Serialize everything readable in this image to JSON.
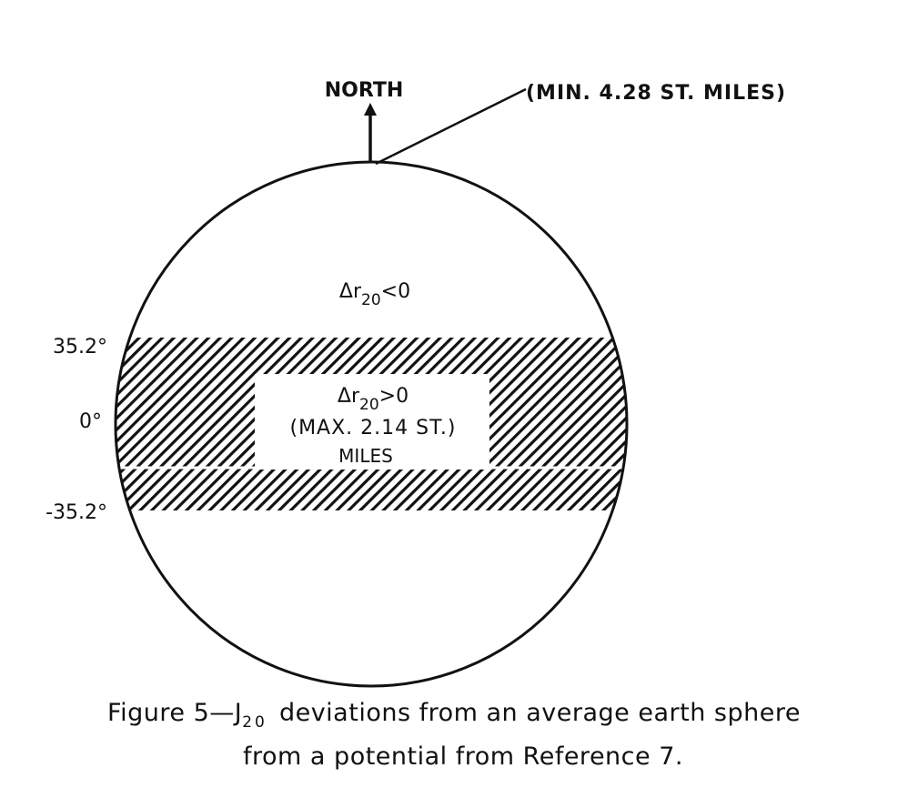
{
  "diagram": {
    "north_label": "NORTH",
    "min_label": "(MIN. 4.28 ST. MILES)",
    "north_region": {
      "prefix": "Δr",
      "subscript": "20",
      "suffix": "<0"
    },
    "band_region": {
      "prefix": "Δr",
      "subscript": "20",
      "suffix": ">0",
      "line2": "(MAX. 2.14 ST.)",
      "line3": "MILES"
    },
    "latitudes": [
      {
        "label": "35.2°"
      },
      {
        "label": "0°"
      },
      {
        "label": "-35.2°"
      }
    ]
  },
  "caption": {
    "prefix": "Figure 5—J",
    "subscript": "20",
    "rest_line1": "deviations from an average earth sphere",
    "line2": "from a potential from Reference 7."
  }
}
